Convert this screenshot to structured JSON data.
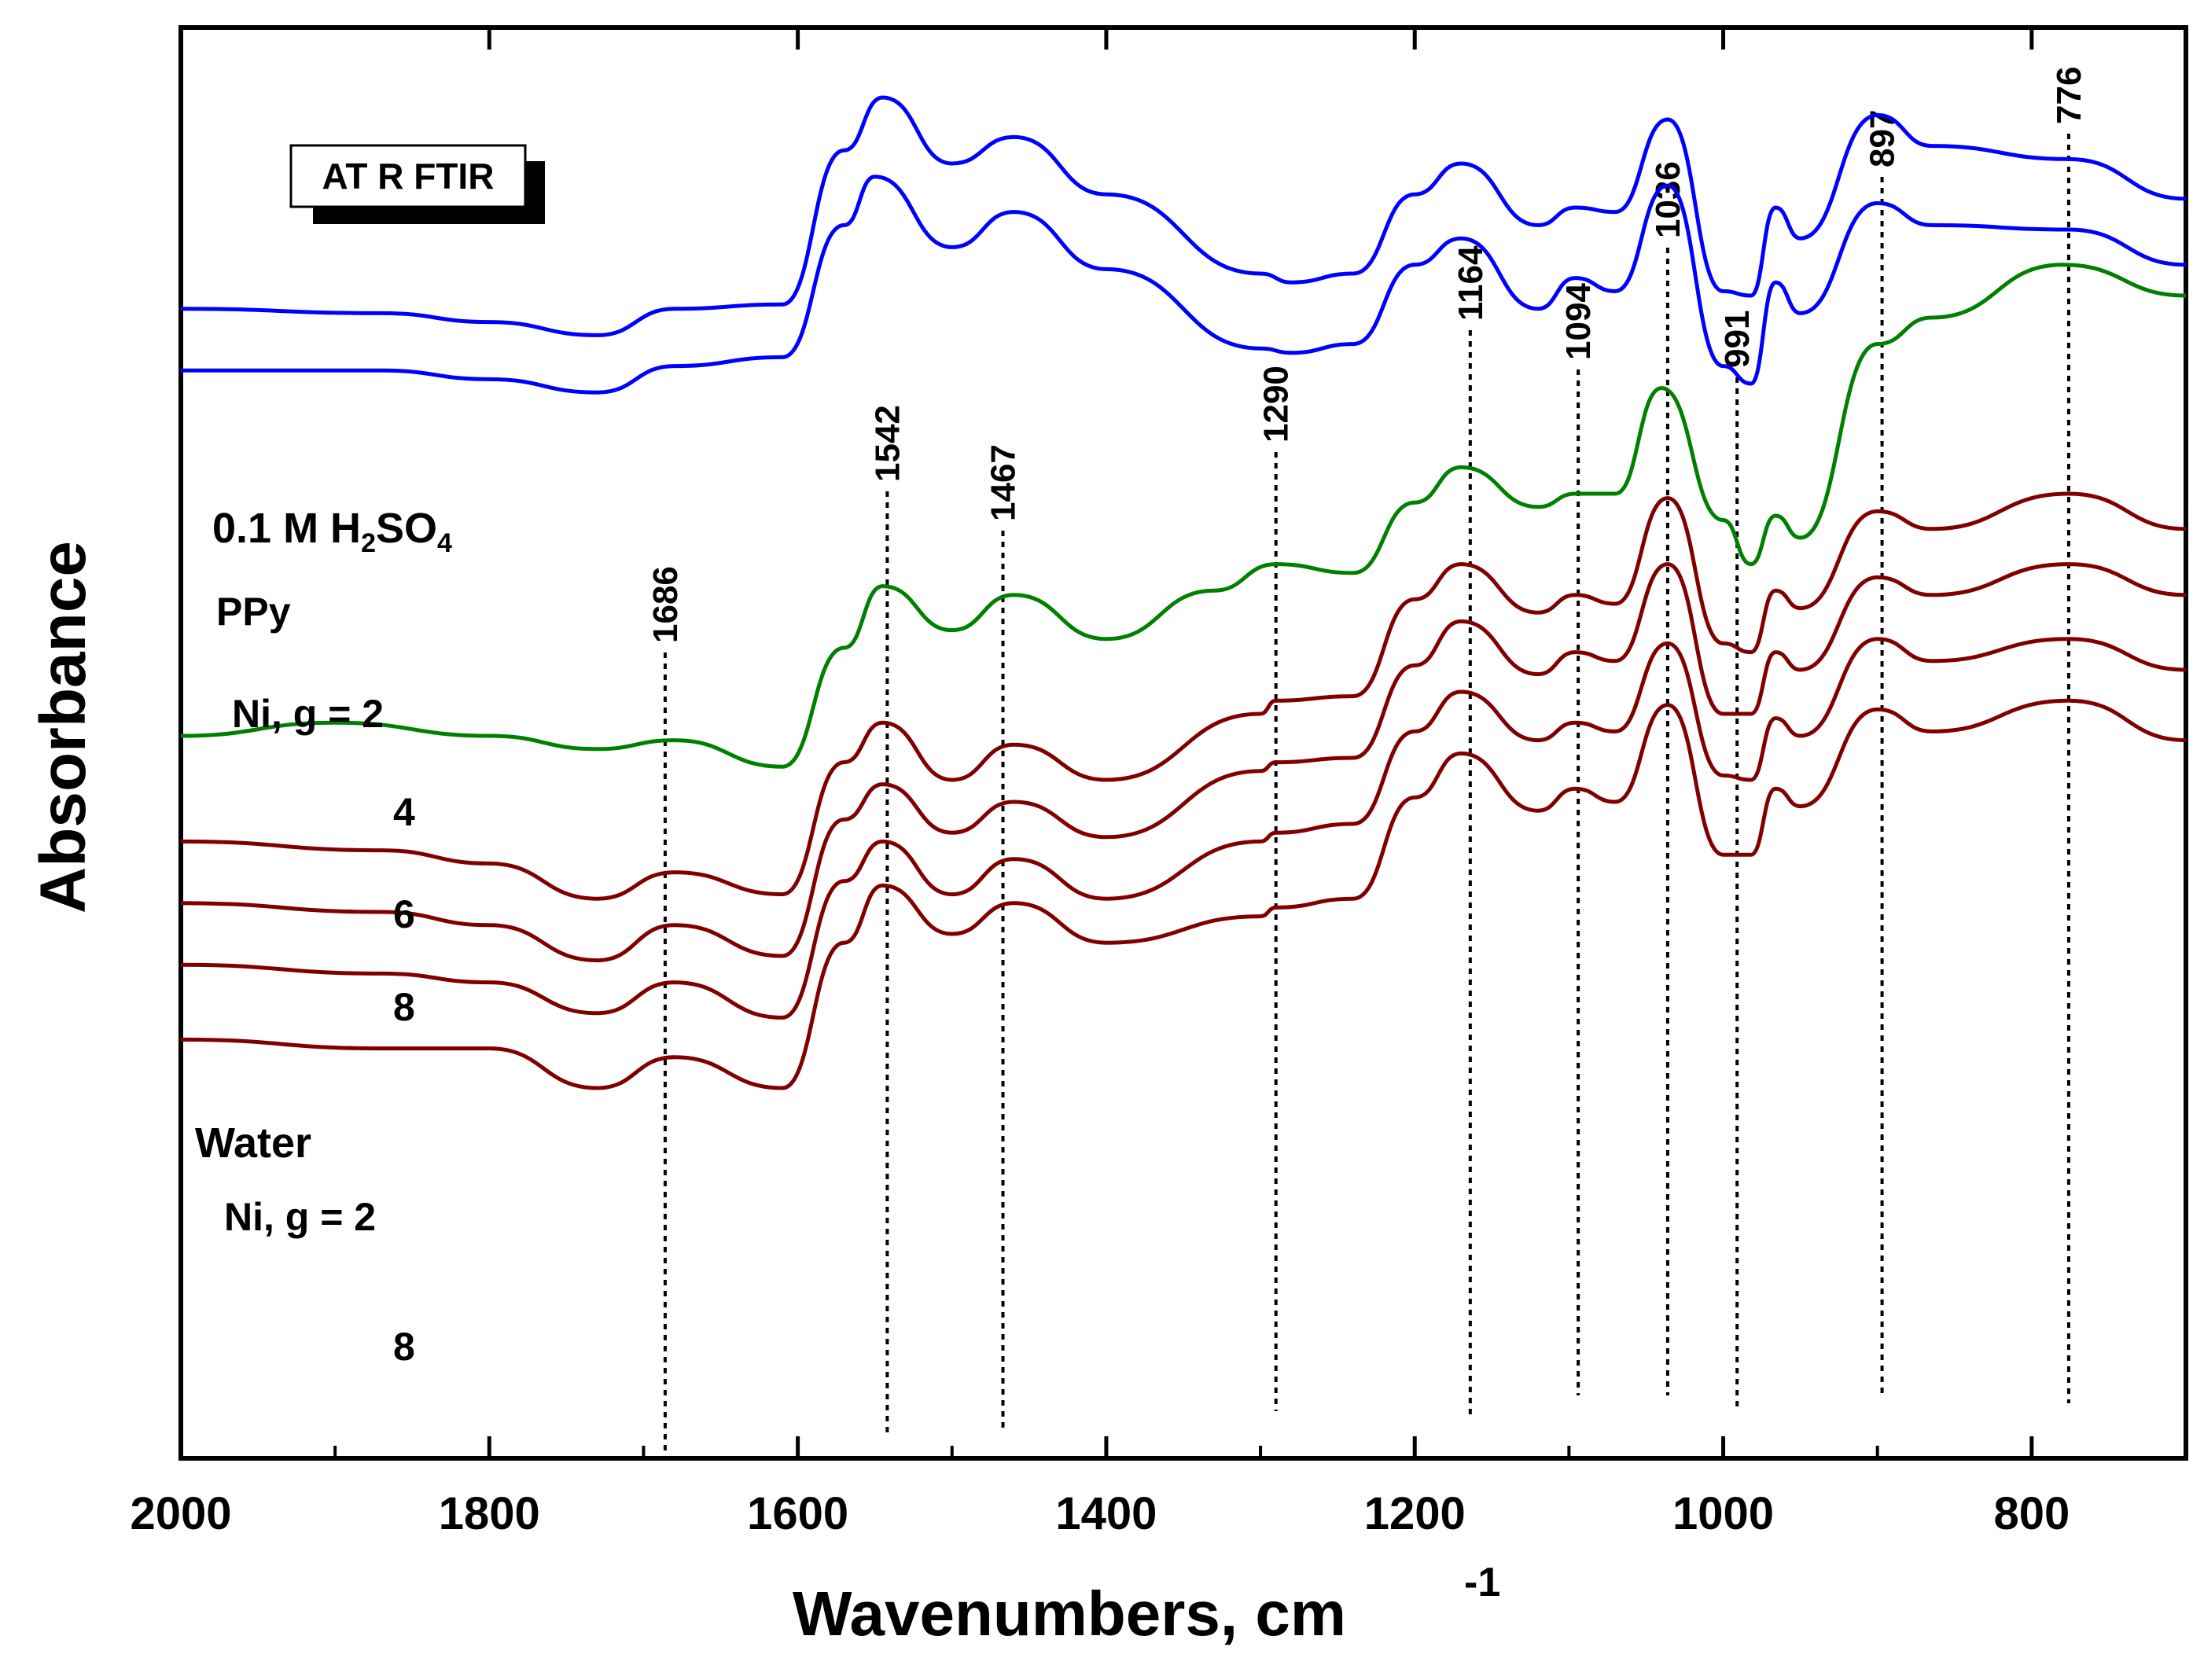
{
  "chart_data": {
    "type": "line",
    "xlabel": "Wavenumbers, cm",
    "xlabel_sup": "-1",
    "ylabel": "Absorbance",
    "xlim": [
      2000,
      700
    ],
    "x_reversed": true,
    "x_ticks": [
      2000,
      1800,
      1600,
      1400,
      1200,
      1000,
      800
    ],
    "grid": false,
    "legend": "none",
    "inset_box": "AT R FTIR",
    "groups": [
      {
        "label": "0.1 M H",
        "sub1": "2",
        "mid": "SO",
        "sub2": "4",
        "color": "#ffffff"
      },
      {
        "label": "Water",
        "color": "#ffffff"
      }
    ],
    "annotations": [
      {
        "text": "1686",
        "x": 1686
      },
      {
        "text": "1542",
        "x": 1542
      },
      {
        "text": "1467",
        "x": 1467
      },
      {
        "text": "1290",
        "x": 1290
      },
      {
        "text": "1164",
        "x": 1164
      },
      {
        "text": "1094",
        "x": 1094
      },
      {
        "text": "1036",
        "x": 1036
      },
      {
        "text": "991",
        "x": 991
      },
      {
        "text": "897",
        "x": 897
      },
      {
        "text": "776",
        "x": 776
      }
    ],
    "series": [
      {
        "name": "PPy",
        "color": "#008000",
        "values": [
          [
            2000,
            0.6
          ],
          [
            1900,
            0.57
          ],
          [
            1800,
            0.6
          ],
          [
            1730,
            0.63
          ],
          [
            1680,
            0.61
          ],
          [
            1610,
            0.67
          ],
          [
            1570,
            0.4
          ],
          [
            1545,
            0.26
          ],
          [
            1500,
            0.36
          ],
          [
            1460,
            0.28
          ],
          [
            1400,
            0.38
          ],
          [
            1330,
            0.27
          ],
          [
            1290,
            0.21
          ],
          [
            1240,
            0.23
          ],
          [
            1200,
            0.07
          ],
          [
            1170,
            -0.01
          ],
          [
            1120,
            0.08
          ],
          [
            1096,
            0.05
          ],
          [
            1070,
            0.05
          ],
          [
            1040,
            -0.19
          ],
          [
            1000,
            0.11
          ],
          [
            982,
            0.21
          ],
          [
            966,
            0.1
          ],
          [
            950,
            0.15
          ],
          [
            900,
            -0.29
          ],
          [
            865,
            -0.35
          ],
          [
            780,
            -0.47
          ],
          [
            700,
            -0.4
          ]
        ]
      },
      {
        "name": "Ni, g = 2",
        "color": "#800000",
        "values": [
          [
            2000,
            1.29
          ],
          [
            1870,
            1.31
          ],
          [
            1800,
            1.31
          ],
          [
            1730,
            1.4
          ],
          [
            1680,
            1.33
          ],
          [
            1610,
            1.4
          ],
          [
            1570,
            1.07
          ],
          [
            1545,
            0.94
          ],
          [
            1500,
            1.05
          ],
          [
            1460,
            0.98
          ],
          [
            1400,
            1.07
          ],
          [
            1300,
            1.01
          ],
          [
            1290,
            0.99
          ],
          [
            1240,
            0.97
          ],
          [
            1200,
            0.74
          ],
          [
            1170,
            0.64
          ],
          [
            1120,
            0.77
          ],
          [
            1096,
            0.72
          ],
          [
            1070,
            0.75
          ],
          [
            1036,
            0.53
          ],
          [
            1000,
            0.87
          ],
          [
            982,
            0.87
          ],
          [
            966,
            0.72
          ],
          [
            950,
            0.76
          ],
          [
            900,
            0.54
          ],
          [
            865,
            0.59
          ],
          [
            776,
            0.52
          ],
          [
            700,
            0.61
          ]
        ]
      },
      {
        "name": "4",
        "color": "#800000",
        "values": [
          [
            2000,
            1.12
          ],
          [
            1870,
            1.14
          ],
          [
            1800,
            1.16
          ],
          [
            1730,
            1.23
          ],
          [
            1680,
            1.16
          ],
          [
            1610,
            1.24
          ],
          [
            1570,
            0.93
          ],
          [
            1545,
            0.84
          ],
          [
            1500,
            0.96
          ],
          [
            1460,
            0.88
          ],
          [
            1400,
            0.97
          ],
          [
            1300,
            0.84
          ],
          [
            1290,
            0.82
          ],
          [
            1240,
            0.8
          ],
          [
            1200,
            0.59
          ],
          [
            1170,
            0.5
          ],
          [
            1120,
            0.61
          ],
          [
            1096,
            0.57
          ],
          [
            1070,
            0.59
          ],
          [
            1036,
            0.39
          ],
          [
            1000,
            0.69
          ],
          [
            982,
            0.7
          ],
          [
            966,
            0.56
          ],
          [
            950,
            0.6
          ],
          [
            900,
            0.38
          ],
          [
            865,
            0.43
          ],
          [
            776,
            0.38
          ],
          [
            700,
            0.45
          ]
        ]
      },
      {
        "name": "6",
        "color": "#800000",
        "values": [
          [
            2000,
            0.98
          ],
          [
            1870,
            1.0
          ],
          [
            1800,
            1.03
          ],
          [
            1730,
            1.11
          ],
          [
            1680,
            1.03
          ],
          [
            1610,
            1.1
          ],
          [
            1570,
            0.79
          ],
          [
            1545,
            0.71
          ],
          [
            1500,
            0.82
          ],
          [
            1460,
            0.75
          ],
          [
            1400,
            0.83
          ],
          [
            1300,
            0.68
          ],
          [
            1290,
            0.66
          ],
          [
            1240,
            0.65
          ],
          [
            1200,
            0.44
          ],
          [
            1170,
            0.34
          ],
          [
            1120,
            0.46
          ],
          [
            1096,
            0.41
          ],
          [
            1070,
            0.43
          ],
          [
            1036,
            0.21
          ],
          [
            1000,
            0.55
          ],
          [
            982,
            0.55
          ],
          [
            966,
            0.41
          ],
          [
            950,
            0.45
          ],
          [
            900,
            0.24
          ],
          [
            865,
            0.28
          ],
          [
            776,
            0.21
          ],
          [
            700,
            0.28
          ]
        ]
      },
      {
        "name": "8",
        "color": "#800000",
        "values": [
          [
            2000,
            0.84
          ],
          [
            1870,
            0.86
          ],
          [
            1800,
            0.89
          ],
          [
            1730,
            0.97
          ],
          [
            1680,
            0.91
          ],
          [
            1610,
            0.96
          ],
          [
            1570,
            0.66
          ],
          [
            1545,
            0.57
          ],
          [
            1500,
            0.7
          ],
          [
            1460,
            0.62
          ],
          [
            1400,
            0.7
          ],
          [
            1300,
            0.55
          ],
          [
            1290,
            0.52
          ],
          [
            1240,
            0.51
          ],
          [
            1200,
            0.29
          ],
          [
            1170,
            0.21
          ],
          [
            1120,
            0.32
          ],
          [
            1096,
            0.28
          ],
          [
            1070,
            0.3
          ],
          [
            1036,
            0.06
          ],
          [
            1000,
            0.39
          ],
          [
            982,
            0.41
          ],
          [
            966,
            0.27
          ],
          [
            950,
            0.31
          ],
          [
            900,
            0.09
          ],
          [
            865,
            0.13
          ],
          [
            776,
            0.05
          ],
          [
            700,
            0.13
          ]
        ]
      },
      {
        "name": "Ni, g = 2",
        "color": "#0000ff",
        "values": [
          [
            2000,
            -0.23
          ],
          [
            1870,
            -0.23
          ],
          [
            1800,
            -0.21
          ],
          [
            1730,
            -0.18
          ],
          [
            1680,
            -0.24
          ],
          [
            1610,
            -0.26
          ],
          [
            1570,
            -0.56
          ],
          [
            1550,
            -0.67
          ],
          [
            1500,
            -0.51
          ],
          [
            1460,
            -0.59
          ],
          [
            1400,
            -0.46
          ],
          [
            1300,
            -0.28
          ],
          [
            1280,
            -0.27
          ],
          [
            1240,
            -0.29
          ],
          [
            1200,
            -0.47
          ],
          [
            1170,
            -0.53
          ],
          [
            1120,
            -0.37
          ],
          [
            1096,
            -0.44
          ],
          [
            1070,
            -0.41
          ],
          [
            1036,
            -0.65
          ],
          [
            1000,
            -0.24
          ],
          [
            982,
            -0.2
          ],
          [
            966,
            -0.43
          ],
          [
            950,
            -0.36
          ],
          [
            900,
            -0.61
          ],
          [
            865,
            -0.56
          ],
          [
            776,
            -0.55
          ],
          [
            700,
            -0.47
          ]
        ]
      },
      {
        "name": "8",
        "color": "#0000ff",
        "values": [
          [
            2000,
            -0.37
          ],
          [
            1870,
            -0.36
          ],
          [
            1800,
            -0.34
          ],
          [
            1730,
            -0.31
          ],
          [
            1680,
            -0.37
          ],
          [
            1610,
            -0.38
          ],
          [
            1570,
            -0.73
          ],
          [
            1545,
            -0.85
          ],
          [
            1500,
            -0.7
          ],
          [
            1460,
            -0.76
          ],
          [
            1400,
            -0.63
          ],
          [
            1300,
            -0.45
          ],
          [
            1280,
            -0.43
          ],
          [
            1240,
            -0.45
          ],
          [
            1200,
            -0.63
          ],
          [
            1170,
            -0.7
          ],
          [
            1120,
            -0.56
          ],
          [
            1096,
            -0.6
          ],
          [
            1070,
            -0.59
          ],
          [
            1036,
            -0.8
          ],
          [
            1000,
            -0.41
          ],
          [
            982,
            -0.4
          ],
          [
            966,
            -0.6
          ],
          [
            950,
            -0.53
          ],
          [
            900,
            -0.81
          ],
          [
            865,
            -0.74
          ],
          [
            776,
            -0.71
          ],
          [
            700,
            -0.62
          ]
        ]
      }
    ],
    "curve_labels": [
      {
        "text": "PPy",
        "series": 0
      },
      {
        "text": "Ni, g = 2",
        "series": 1
      },
      {
        "text": "4",
        "series": 2
      },
      {
        "text": "6",
        "series": 3
      },
      {
        "text": "8",
        "series": 4
      },
      {
        "text": "Ni, g = 2",
        "series": 5
      },
      {
        "text": "8",
        "series": 6
      }
    ]
  }
}
